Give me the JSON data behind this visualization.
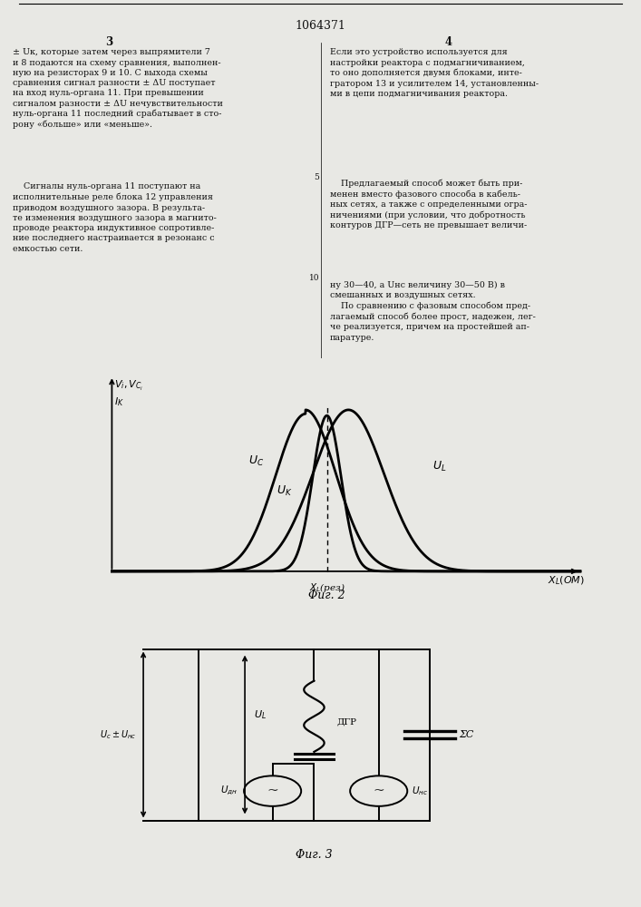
{
  "title": "1064371",
  "col3_header": "3",
  "col4_header": "4",
  "left_text_top": "± Uк, которые затем через выпрямители 7\nи 8 подаются на схему сравнения, выполнен-\nную на резисторах 9 и 10. С выхода схемы\nсравнения сигнал разности ± ΔU поступает\nна вход нуль-органа 11. При превышении\nсигналом разности ± ΔU нечувствительности\nнуль-органа 11 последний срабатывает в сто-\nрону «больше» или «меньше».",
  "right_text_top": "Если это устройство используется для\nнастройки реактора с подмагничиванием,\nто оно дополняется двумя блоками, инте-\nгратором 13 и усилителем 14, установленны-\nми в цепи подмагничивания реактора.",
  "left_text_bot": "    Сигналы нуль-органа 11 поступают на\nисполнительные реле блока 12 управления\nприводом воздушного зазора. В результа-\nте изменения воздушного зазора в магнито-\nпроводе реактора индуктивное сопротивле-\nние последнего настраивается в резонанс с\nемкостью сети.",
  "right_text_mid": "    Предлагаемый способ может быть при-\nменен вместо фазового способа в кабель-\nных сетях, а также с определенными огра-\nничениями (при условии, что добротность\nконтуров ДГР—сеть не превышает величи-",
  "right_text_bot": "ну 30—40, а Uнс величину 30—50 В) в\nсмешанных и воздушных сетях.\n    По сравнению с фазовым способом пред-\nлагаемый способ более прост, надежен, лег-\nче реализуется, причем на простейшей ап-\nпаратуре.",
  "fig2_caption": "Φиг. 2",
  "fig3_caption": "Φиг. 3",
  "bg_color": "#e8e8e4",
  "text_color": "#111111"
}
